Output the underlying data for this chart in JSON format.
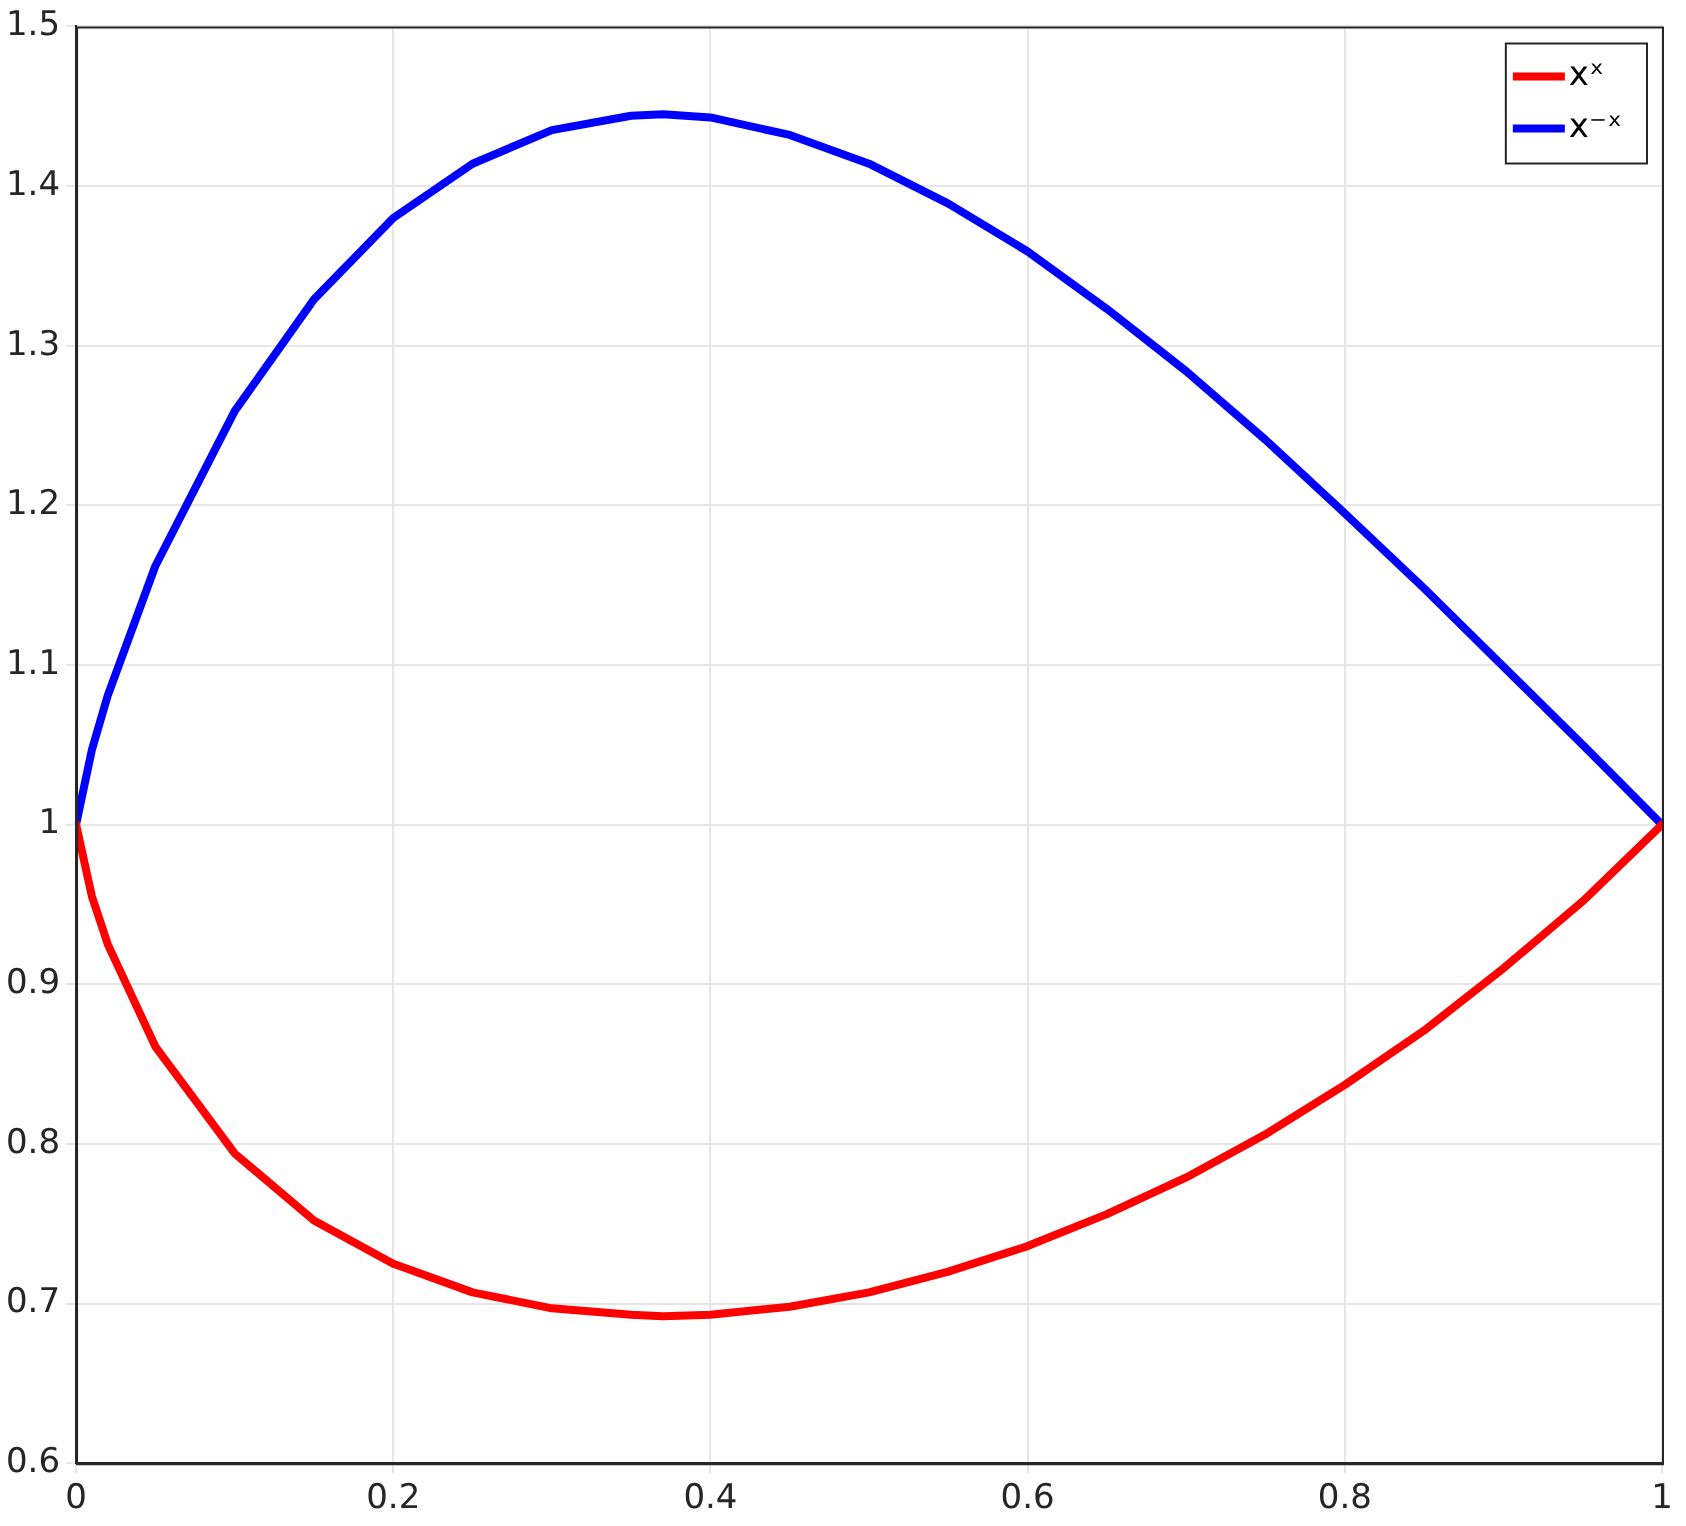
{
  "chart_data": {
    "type": "line",
    "x": [
      0,
      0.01,
      0.02,
      0.05,
      0.1,
      0.15,
      0.2,
      0.25,
      0.3,
      0.35,
      0.37,
      0.4,
      0.45,
      0.5,
      0.55,
      0.6,
      0.65,
      0.7,
      0.75,
      0.8,
      0.85,
      0.9,
      0.95,
      1
    ],
    "series": [
      {
        "name": "xˣ",
        "color": "#ff0000",
        "values": [
          1,
          0.955,
          0.925,
          0.861,
          0.794,
          0.752,
          0.725,
          0.707,
          0.697,
          0.693,
          0.692,
          0.693,
          0.698,
          0.707,
          0.72,
          0.736,
          0.756,
          0.779,
          0.806,
          0.837,
          0.871,
          0.91,
          0.952,
          1
        ]
      },
      {
        "name": "x⁻ˣ",
        "color": "#0000ff",
        "values": [
          1,
          1.047,
          1.081,
          1.162,
          1.259,
          1.329,
          1.38,
          1.414,
          1.435,
          1.444,
          1.445,
          1.443,
          1.432,
          1.414,
          1.389,
          1.359,
          1.323,
          1.284,
          1.241,
          1.195,
          1.148,
          1.099,
          1.05,
          1
        ]
      }
    ],
    "xlim": [
      0,
      1
    ],
    "xticks": [
      0,
      0.2,
      0.4,
      0.6,
      0.8,
      1
    ],
    "ylim": [
      0.6,
      1.5
    ],
    "yticks": [
      0.6,
      0.7,
      0.8,
      0.9,
      1,
      1.1,
      1.2,
      1.3,
      1.4,
      1.5
    ],
    "grid": true,
    "legend": "top right",
    "marker": "none",
    "line_style": "solid"
  }
}
